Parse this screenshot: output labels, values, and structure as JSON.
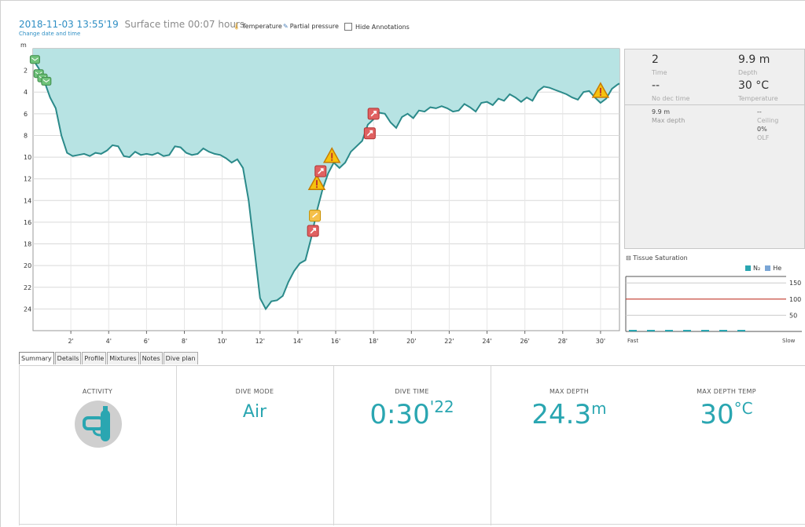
{
  "header": {
    "datetime": "2018-11-03 13:55'19",
    "surface_time": "Surface time 00:07 hours",
    "change_link": "Change date and time",
    "legend": {
      "temperature": "Temperature",
      "partial_pressure": "Partial pressure",
      "hide_annotations": "Hide Annotations"
    }
  },
  "chart_data": {
    "type": "area",
    "xlabel": "",
    "ylabel": "m",
    "xlim": [
      0,
      31
    ],
    "ylim": [
      0,
      26
    ],
    "y_inverted": true,
    "grid": true,
    "x_ticks": [
      "2'",
      "4'",
      "6'",
      "8'",
      "10'",
      "12'",
      "14'",
      "16'",
      "18'",
      "20'",
      "22'",
      "24'",
      "26'",
      "28'",
      "30'"
    ],
    "y_ticks": [
      "2",
      "4",
      "6",
      "8",
      "10",
      "12",
      "14",
      "16",
      "18",
      "20",
      "22",
      "24"
    ],
    "fill_color": "#b7e3e3",
    "line_color": "#2b8a8a",
    "x": [
      0,
      0.3,
      0.6,
      0.9,
      1.2,
      1.5,
      1.8,
      2.1,
      2.4,
      2.7,
      3.0,
      3.3,
      3.6,
      3.9,
      4.2,
      4.5,
      4.8,
      5.1,
      5.4,
      5.7,
      6.0,
      6.3,
      6.6,
      6.9,
      7.2,
      7.5,
      7.8,
      8.1,
      8.4,
      8.7,
      9.0,
      9.3,
      9.6,
      9.9,
      10.2,
      10.5,
      10.8,
      11.1,
      11.4,
      11.7,
      12.0,
      12.3,
      12.6,
      12.9,
      13.2,
      13.5,
      13.8,
      14.1,
      14.4,
      14.7,
      15.0,
      15.3,
      15.6,
      15.9,
      16.2,
      16.5,
      16.8,
      17.1,
      17.4,
      17.7,
      18.0,
      18.3,
      18.6,
      18.9,
      19.2,
      19.5,
      19.8,
      20.1,
      20.4,
      20.7,
      21.0,
      21.3,
      21.6,
      21.9,
      22.2,
      22.5,
      22.8,
      23.1,
      23.4,
      23.7,
      24.0,
      24.3,
      24.6,
      24.9,
      25.2,
      25.5,
      25.8,
      26.1,
      26.4,
      26.7,
      27.0,
      27.3,
      27.6,
      27.9,
      28.2,
      28.5,
      28.8,
      29.1,
      29.4,
      29.7,
      30.0,
      30.3,
      30.6,
      30.9,
      31.0
    ],
    "y": [
      1.0,
      1.8,
      3.0,
      4.5,
      5.5,
      8.0,
      9.6,
      9.9,
      9.8,
      9.7,
      9.9,
      9.6,
      9.7,
      9.4,
      8.9,
      9.0,
      9.9,
      10.0,
      9.5,
      9.8,
      9.7,
      9.8,
      9.6,
      9.9,
      9.8,
      9.0,
      9.1,
      9.6,
      9.8,
      9.7,
      9.2,
      9.5,
      9.7,
      9.8,
      10.1,
      10.5,
      10.2,
      11.0,
      14.0,
      18.5,
      23.0,
      24.0,
      23.3,
      23.2,
      22.8,
      21.5,
      20.5,
      19.8,
      19.5,
      17.5,
      15.0,
      13.0,
      11.5,
      10.5,
      11.0,
      10.5,
      9.5,
      9.0,
      8.5,
      7.0,
      6.5,
      5.9,
      6.0,
      6.8,
      7.3,
      6.3,
      6.0,
      6.4,
      5.7,
      5.8,
      5.4,
      5.5,
      5.3,
      5.5,
      5.8,
      5.7,
      5.1,
      5.4,
      5.8,
      5.0,
      4.9,
      5.2,
      4.6,
      4.8,
      4.2,
      4.5,
      4.9,
      4.5,
      4.8,
      3.9,
      3.5,
      3.6,
      3.8,
      4.0,
      4.2,
      4.5,
      4.7,
      4.0,
      3.9,
      4.5,
      5.0,
      4.6,
      3.7,
      3.3,
      3.2
    ],
    "annotations": [
      {
        "kind": "note",
        "x": 0.1,
        "y": 1.0
      },
      {
        "kind": "note",
        "x": 0.3,
        "y": 2.3
      },
      {
        "kind": "note",
        "x": 0.5,
        "y": 2.7
      },
      {
        "kind": "note",
        "x": 0.7,
        "y": 3.0
      },
      {
        "kind": "warning",
        "x": 15.8,
        "y": 9.9
      },
      {
        "kind": "warning",
        "x": 15.0,
        "y": 12.4
      },
      {
        "kind": "warning",
        "x": 30.0,
        "y": 3.9
      },
      {
        "kind": "ascent",
        "x": 15.2,
        "y": 11.3
      },
      {
        "kind": "ascent",
        "x": 18.0,
        "y": 6.0
      },
      {
        "kind": "ascent",
        "x": 17.8,
        "y": 7.8
      },
      {
        "kind": "ascent",
        "x": 14.8,
        "y": 16.8
      },
      {
        "kind": "safety",
        "x": 14.9,
        "y": 15.4
      }
    ]
  },
  "info": {
    "time_value": "2",
    "time_label": "Time",
    "depth_value": "9.9 m",
    "depth_label": "Depth",
    "ndl_value": "--",
    "ndl_label": "No dec time",
    "temp_value": "30 °C",
    "temp_label": "Temperature",
    "max_depth_value": "9.9 m",
    "max_depth_label": "Max depth",
    "ceiling_value": "--",
    "ceiling_label": "Ceiling",
    "olf_value": "0%",
    "olf_label": "OLF"
  },
  "tissue": {
    "title": "Tissue Saturation",
    "legend_n2": "N₂",
    "legend_he": "He",
    "n2_color": "#2aa6b1",
    "he_color": "#7aa6d6",
    "limit_color": "#c0392b",
    "ticks": [
      "150",
      "100",
      "50"
    ],
    "fast_label": "Fast",
    "slow_label": "Slow",
    "compartments": [
      22,
      24,
      20,
      16,
      14,
      12,
      10
    ]
  },
  "tabs": [
    "Summary",
    "Details",
    "Profile",
    "Mixtures",
    "Notes",
    "Dive plan"
  ],
  "summary": {
    "activity_label": "ACTIVITY",
    "dive_mode_label": "DIVE MODE",
    "dive_mode_value": "Air",
    "dive_time_label": "DIVE TIME",
    "dive_time_main": "0:30",
    "dive_time_seconds": "'22",
    "max_depth_label": "MAX DEPTH",
    "max_depth_value": "24.3",
    "max_depth_unit": "m",
    "max_temp_label": "MAX DEPTH TEMP",
    "max_temp_value": "30",
    "max_temp_unit": "°C",
    "accent_color": "#2aa6b1"
  }
}
